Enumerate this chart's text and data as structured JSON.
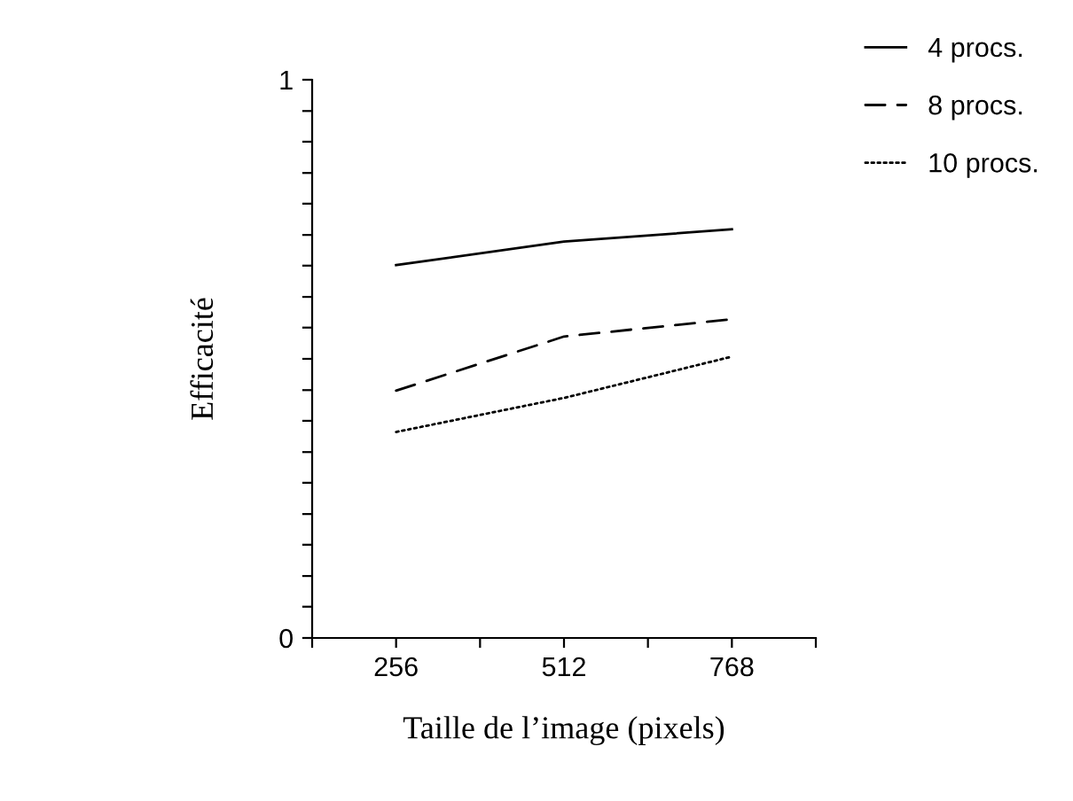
{
  "chart_data": {
    "type": "line",
    "xlabel": "Taille de l’image (pixels)",
    "ylabel": "Efficacité",
    "x": [
      256,
      512,
      768
    ],
    "series": [
      {
        "name": "4 procs.",
        "color": "#000000",
        "line_style": "solid",
        "values": [
          0.668,
          0.71,
          0.732
        ]
      },
      {
        "name": "8 procs.",
        "color": "#000000",
        "line_style": "dashed",
        "values": [
          0.443,
          0.54,
          0.571
        ]
      },
      {
        "name": "10 procs.",
        "color": "#000000",
        "line_style": "dotted",
        "values": [
          0.369,
          0.43,
          0.504
        ]
      }
    ],
    "xlim": [
      128,
      896
    ],
    "xticks": [
      {
        "value": 128,
        "label": null
      },
      256,
      {
        "value": 384,
        "label": null
      },
      512,
      {
        "value": 640,
        "label": null
      },
      768,
      {
        "value": 896,
        "label": null
      }
    ],
    "ylim": [
      0,
      1
    ],
    "yticks": [
      0,
      {
        "value": 0.056,
        "label": null
      },
      {
        "value": 0.111,
        "label": null
      },
      {
        "value": 0.167,
        "label": null
      },
      {
        "value": 0.222,
        "label": null
      },
      {
        "value": 0.278,
        "label": null
      },
      {
        "value": 0.333,
        "label": null
      },
      {
        "value": 0.389,
        "label": null
      },
      {
        "value": 0.444,
        "label": null
      },
      {
        "value": 0.5,
        "label": null
      },
      {
        "value": 0.556,
        "label": null
      },
      {
        "value": 0.611,
        "label": null
      },
      {
        "value": 0.667,
        "label": null
      },
      {
        "value": 0.722,
        "label": null
      },
      {
        "value": 0.778,
        "label": null
      },
      {
        "value": 0.833,
        "label": null
      },
      {
        "value": 0.889,
        "label": null
      },
      {
        "value": 0.944,
        "label": null
      },
      1
    ],
    "grid": false,
    "legend": "top right",
    "marker": "none"
  }
}
